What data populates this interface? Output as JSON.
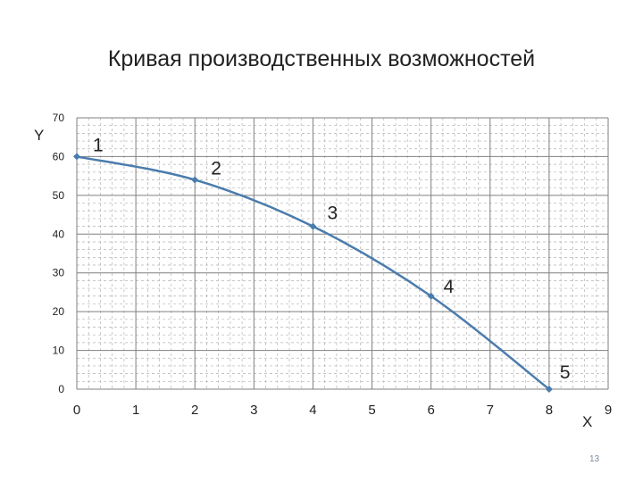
{
  "chart_data": {
    "type": "line",
    "title": "Кривая производственных возможностей",
    "xlabel": "X",
    "ylabel": "Y",
    "xlim": [
      0,
      9
    ],
    "ylim": [
      0,
      70
    ],
    "x_ticks": [
      "0",
      "1",
      "2",
      "3",
      "4",
      "5",
      "6",
      "7",
      "8",
      "9"
    ],
    "y_ticks": [
      "0",
      "10",
      "20",
      "30",
      "40",
      "50",
      "60",
      "70"
    ],
    "grid": true,
    "series": [
      {
        "x": [
          0,
          2,
          4,
          6,
          8
        ],
        "y": [
          60,
          54,
          42,
          24,
          0
        ],
        "point_labels": [
          "1",
          "2",
          "3",
          "4",
          "5"
        ],
        "color": "#4a7cad"
      }
    ]
  },
  "footer": {
    "page_number": "13"
  }
}
